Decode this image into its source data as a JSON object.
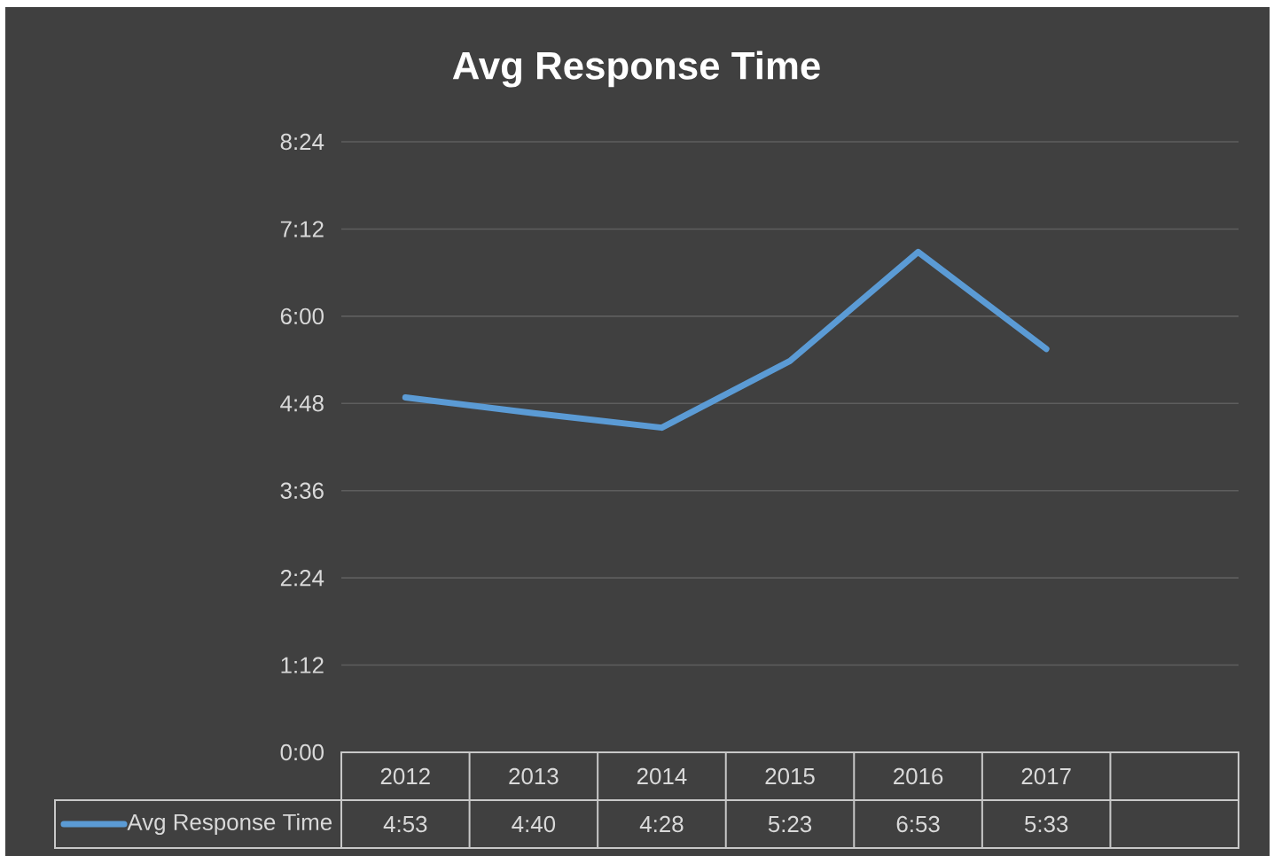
{
  "chart_data": {
    "type": "line",
    "title": "Avg Response Time",
    "categories": [
      "2012",
      "2013",
      "2014",
      "2015",
      "2016",
      "2017",
      null
    ],
    "series": [
      {
        "name": "Avg Response Time",
        "color": "#5b9bd5",
        "values": [
          4.8833,
          4.6667,
          4.4667,
          5.3833,
          6.8833,
          5.55,
          null
        ],
        "value_labels": [
          "4:53",
          "4:40",
          "4:28",
          "5:23",
          "6:53",
          "5:33",
          null
        ]
      }
    ],
    "ylim": [
      0,
      8.4
    ],
    "yticks": [
      {
        "value": 0,
        "label": "0:00"
      },
      {
        "value": 1.2,
        "label": "1:12"
      },
      {
        "value": 2.4,
        "label": "2:24"
      },
      {
        "value": 3.6,
        "label": "3:36"
      },
      {
        "value": 4.8,
        "label": "4:48"
      },
      {
        "value": 6,
        "label": "6:00"
      },
      {
        "value": 7.2,
        "label": "7:12"
      },
      {
        "value": 8.4,
        "label": "8:24"
      }
    ],
    "grid": "y",
    "legend": "bottom"
  }
}
